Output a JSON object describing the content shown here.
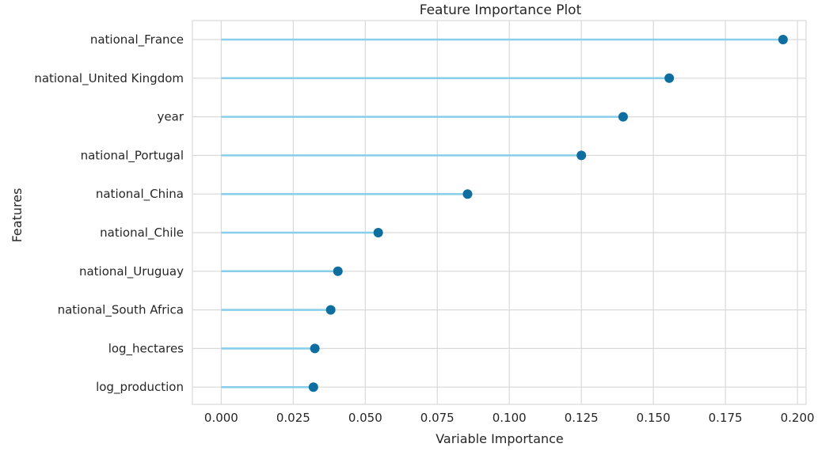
{
  "chart_data": {
    "type": "lollipop",
    "title": "Feature Importance Plot",
    "xlabel": "Variable Importance",
    "ylabel": "Features",
    "xlim": [
      -0.01,
      0.203
    ],
    "xticks": [
      0.0,
      0.025,
      0.05,
      0.075,
      0.1,
      0.125,
      0.15,
      0.175,
      0.2
    ],
    "xtick_labels": [
      "0.000",
      "0.025",
      "0.050",
      "0.075",
      "0.100",
      "0.125",
      "0.150",
      "0.175",
      "0.200"
    ],
    "grid": true,
    "categories": [
      "national_France",
      "national_United Kingdom",
      "year",
      "national_Portugal",
      "national_China",
      "national_Chile",
      "national_Uruguay",
      "national_South Africa",
      "log_hectares",
      "log_production"
    ],
    "values": [
      0.195,
      0.1555,
      0.1395,
      0.125,
      0.0855,
      0.0545,
      0.0405,
      0.038,
      0.0325,
      0.032
    ],
    "colors": {
      "stem": "#87ceeb",
      "marker": "#0e6e9f",
      "grid": "#d9d9d9",
      "frame": "#d9d9d9"
    }
  }
}
